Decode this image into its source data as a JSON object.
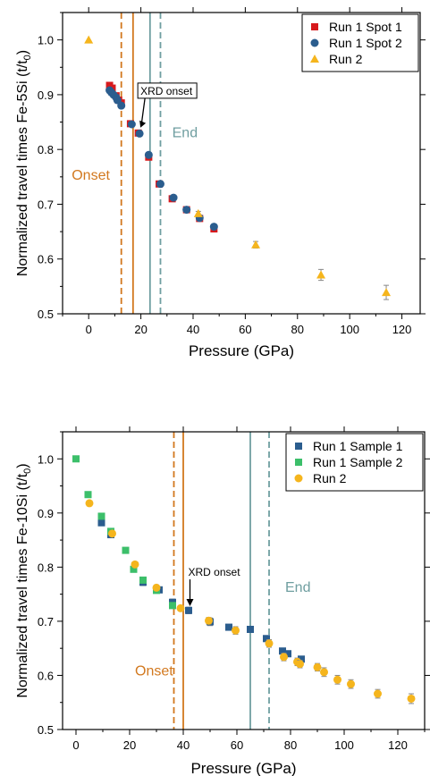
{
  "colors": {
    "orange": "#d2781e",
    "teal": "#6f9ea0",
    "red": "#d7191c",
    "blue": "#2b5d8e",
    "green": "#3cbf6a",
    "yellow": "#f5b51d",
    "axis": "#000000"
  },
  "chart_data": [
    {
      "type": "scatter",
      "ylabel": "Normalized travel times Fe-5Si (t/t0)",
      "ylabel_main": "Normalized travel times Fe-5Si (t/t",
      "ylabel_sub": "0",
      "ylabel_close": ")",
      "xlabel": "Pressure (GPa)",
      "xlim": [
        -10,
        127
      ],
      "ylim": [
        0.5,
        1.05
      ],
      "xticks": [
        0,
        20,
        40,
        60,
        80,
        100,
        120
      ],
      "yticks": [
        0.5,
        0.6,
        0.7,
        0.8,
        0.9,
        1.0
      ],
      "xtick_labels": [
        "0",
        "20",
        "40",
        "60",
        "80",
        "100",
        "120"
      ],
      "ytick_labels": [
        "0.5",
        "0.6",
        "0.7",
        "0.8",
        "0.9",
        "1.0"
      ],
      "legend_position": "top-right",
      "series": [
        {
          "name": "Run 1 Spot 1",
          "marker": "square",
          "color": "#d7191c",
          "x": [
            8,
            9,
            10.5,
            11.5,
            12.5,
            16,
            19,
            23,
            27,
            32,
            37.5,
            42.5,
            48
          ],
          "y": [
            0.917,
            0.912,
            0.898,
            0.89,
            0.885,
            0.847,
            0.83,
            0.786,
            0.737,
            0.71,
            0.69,
            0.674,
            0.655
          ]
        },
        {
          "name": "Run 1 Spot 2",
          "marker": "circle",
          "color": "#2b5d8e",
          "x": [
            8,
            8.7,
            9.5,
            10.5,
            11,
            12.5,
            16.5,
            19.5,
            23,
            27.5,
            32.5,
            37.5,
            42.5,
            48
          ],
          "y": [
            0.908,
            0.904,
            0.9,
            0.895,
            0.89,
            0.88,
            0.846,
            0.829,
            0.79,
            0.737,
            0.712,
            0.69,
            0.675,
            0.659
          ]
        },
        {
          "name": "Run 2",
          "marker": "triangle",
          "color": "#f5b51d",
          "x": [
            0,
            42,
            64,
            89,
            114
          ],
          "y": [
            1.0,
            0.683,
            0.626,
            0.571,
            0.539
          ],
          "err": [
            0,
            0.004,
            0.006,
            0.01,
            0.013
          ]
        }
      ],
      "vlines": [
        {
          "x": 12.5,
          "style": "dashed",
          "color": "#d2781e"
        },
        {
          "x": 17,
          "style": "solid",
          "color": "#d2781e"
        },
        {
          "x": 23.5,
          "style": "solid",
          "color": "#6f9ea0"
        },
        {
          "x": 27.5,
          "style": "dashed",
          "color": "#6f9ea0"
        }
      ],
      "annotations": {
        "onset": {
          "text": "Onset",
          "x": -6.5,
          "y": 0.745,
          "color": "#d2781e"
        },
        "end": {
          "text": "End",
          "x": 32,
          "y": 0.822,
          "color": "#6f9ea0"
        },
        "xrd": {
          "text": "XRD onset",
          "x": 19.5,
          "y": 0.9,
          "arrow_to": [
            19.5,
            0.835
          ],
          "boxed": true
        }
      }
    },
    {
      "type": "scatter",
      "ylabel": "Normalized travel times Fe-10Si (t/t0)",
      "ylabel_main": "Normalized travel times Fe-10Si (t/t",
      "ylabel_sub": "0",
      "ylabel_close": ")",
      "xlabel": "Pressure (GPa)",
      "xlim": [
        -5,
        130
      ],
      "ylim": [
        0.5,
        1.05
      ],
      "xticks": [
        0,
        20,
        40,
        60,
        80,
        100,
        120
      ],
      "yticks": [
        0.5,
        0.6,
        0.7,
        0.8,
        0.9,
        1.0
      ],
      "xtick_labels": [
        "0",
        "20",
        "40",
        "60",
        "80",
        "100",
        "120"
      ],
      "ytick_labels": [
        "0.5",
        "0.6",
        "0.7",
        "0.8",
        "0.9",
        "1.0"
      ],
      "legend_position": "top-right",
      "series": [
        {
          "name": "Run 1 Sample 1",
          "marker": "square",
          "color": "#2b5d8e",
          "x": [
            9.5,
            13,
            25,
            31,
            36,
            42,
            50,
            57,
            65,
            71,
            77,
            79,
            84
          ],
          "y": [
            0.882,
            0.86,
            0.772,
            0.758,
            0.735,
            0.72,
            0.699,
            0.689,
            0.685,
            0.668,
            0.645,
            0.64,
            0.63
          ],
          "err": [
            0,
            0,
            0.006,
            0,
            0.006,
            0.006,
            0.007,
            0,
            0,
            0,
            0,
            0,
            0
          ]
        },
        {
          "name": "Run 1 Sample 2",
          "marker": "square",
          "color": "#3cbf6a",
          "x": [
            0,
            4.5,
            9.5,
            13,
            18.5,
            21.5,
            25,
            30,
            36
          ],
          "y": [
            1.0,
            0.934,
            0.894,
            0.866,
            0.831,
            0.796,
            0.776,
            0.757,
            0.729
          ]
        },
        {
          "name": "Run 2",
          "marker": "circle",
          "color": "#f5b51d",
          "x": [
            5,
            13.5,
            22,
            30,
            39,
            49.5,
            59.5,
            72,
            77.5,
            82.5,
            83.5,
            90,
            92.5,
            97.5,
            102.5,
            112.5,
            125
          ],
          "y": [
            0.918,
            0.862,
            0.805,
            0.762,
            0.724,
            0.701,
            0.683,
            0.659,
            0.634,
            0.625,
            0.621,
            0.615,
            0.606,
            0.592,
            0.584,
            0.566,
            0.557
          ],
          "err": [
            0,
            0,
            0,
            0.005,
            0.005,
            0.006,
            0.007,
            0.007,
            0.007,
            0.007,
            0.007,
            0.007,
            0.008,
            0.008,
            0.008,
            0.008,
            0.009
          ]
        }
      ],
      "vlines": [
        {
          "x": 36.5,
          "style": "dashed",
          "color": "#d2781e"
        },
        {
          "x": 40,
          "style": "solid",
          "color": "#d2781e"
        },
        {
          "x": 65,
          "style": "solid",
          "color": "#6f9ea0"
        },
        {
          "x": 72,
          "style": "dashed",
          "color": "#6f9ea0"
        }
      ],
      "annotations": {
        "onset": {
          "text": "Onset",
          "x": 22,
          "y": 0.6,
          "color": "#d2781e"
        },
        "end": {
          "text": "End",
          "x": 78,
          "y": 0.7545,
          "color": "#6f9ea0"
        },
        "xrd": {
          "text": "XRD onset",
          "x": 42.5,
          "y": 0.784,
          "arrow_to": [
            42.5,
            0.728
          ],
          "boxed": false
        }
      }
    }
  ]
}
